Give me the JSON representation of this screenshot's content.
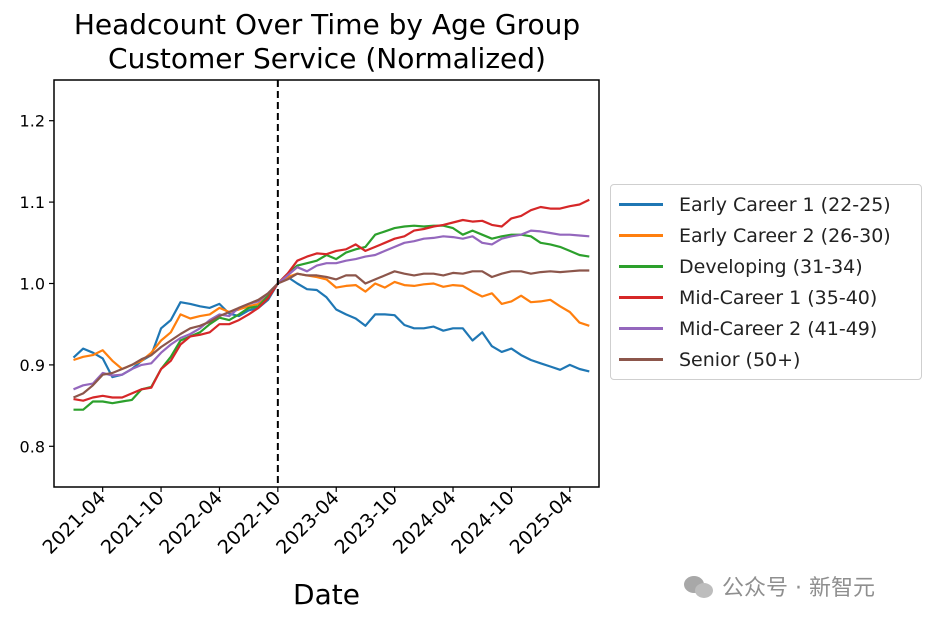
{
  "title_line1": "Headcount Over Time by Age Group",
  "title_line2": "Customer Service (Normalized)",
  "watermark": "公众号 · 新智元",
  "chart_data": {
    "type": "line",
    "title": "Headcount Over Time by Age Group\nCustomer Service (Normalized)",
    "xlabel": "Date",
    "ylabel": "",
    "x_tick_labels": [
      "2021-04",
      "2021-10",
      "2022-04",
      "2022-10",
      "2023-04",
      "2023-10",
      "2024-04",
      "2024-10",
      "2025-04"
    ],
    "y_ticks": [
      0.8,
      0.9,
      1.0,
      1.1,
      1.2
    ],
    "ylim": [
      0.75,
      1.25
    ],
    "xlim": [
      "2020-11-01",
      "2025-07-01"
    ],
    "grid": false,
    "legend_position": "outside-right",
    "vline": {
      "x": "2022-10-01",
      "style": "dashed",
      "color": "#000000"
    },
    "x": [
      "2021-01",
      "2021-02",
      "2021-03",
      "2021-04",
      "2021-05",
      "2021-06",
      "2021-07",
      "2021-08",
      "2021-09",
      "2021-10",
      "2021-11",
      "2021-12",
      "2022-01",
      "2022-02",
      "2022-03",
      "2022-04",
      "2022-05",
      "2022-06",
      "2022-07",
      "2022-08",
      "2022-09",
      "2022-10",
      "2022-11",
      "2022-12",
      "2023-01",
      "2023-02",
      "2023-03",
      "2023-04",
      "2023-05",
      "2023-06",
      "2023-07",
      "2023-08",
      "2023-09",
      "2023-10",
      "2023-11",
      "2023-12",
      "2024-01",
      "2024-02",
      "2024-03",
      "2024-04",
      "2024-05",
      "2024-06",
      "2024-07",
      "2024-08",
      "2024-09",
      "2024-10",
      "2024-11",
      "2024-12",
      "2025-01",
      "2025-02",
      "2025-03",
      "2025-04",
      "2025-05",
      "2025-06"
    ],
    "series": [
      {
        "name": "Early Career 1 (22-25)",
        "color": "#1f77b4",
        "values": [
          0.909,
          0.92,
          0.915,
          0.908,
          0.885,
          0.888,
          0.895,
          0.905,
          0.912,
          0.945,
          0.955,
          0.977,
          0.975,
          0.972,
          0.97,
          0.975,
          0.963,
          0.96,
          0.967,
          0.97,
          0.98,
          1.0,
          1.008,
          1.0,
          0.993,
          0.992,
          0.983,
          0.968,
          0.962,
          0.957,
          0.948,
          0.962,
          0.962,
          0.961,
          0.949,
          0.945,
          0.945,
          0.947,
          0.942,
          0.945,
          0.945,
          0.93,
          0.94,
          0.923,
          0.916,
          0.92,
          0.912,
          0.906,
          0.902,
          0.898,
          0.894,
          0.9,
          0.895,
          0.892
        ]
      },
      {
        "name": "Early Career 2 (26-30)",
        "color": "#ff7f0e",
        "values": [
          0.906,
          0.91,
          0.912,
          0.918,
          0.905,
          0.895,
          0.9,
          0.905,
          0.915,
          0.93,
          0.94,
          0.962,
          0.957,
          0.96,
          0.962,
          0.97,
          0.965,
          0.968,
          0.972,
          0.975,
          0.985,
          1.0,
          1.008,
          1.012,
          1.01,
          1.008,
          1.005,
          0.995,
          0.997,
          0.998,
          0.99,
          1.0,
          0.995,
          1.002,
          0.998,
          0.997,
          0.999,
          1.0,
          0.996,
          0.998,
          0.997,
          0.99,
          0.984,
          0.988,
          0.975,
          0.978,
          0.985,
          0.977,
          0.978,
          0.98,
          0.972,
          0.965,
          0.952,
          0.948
        ]
      },
      {
        "name": "Developing (31-34)",
        "color": "#2ca02c",
        "values": [
          0.845,
          0.845,
          0.855,
          0.855,
          0.853,
          0.855,
          0.857,
          0.87,
          0.873,
          0.895,
          0.91,
          0.93,
          0.935,
          0.94,
          0.95,
          0.958,
          0.955,
          0.962,
          0.97,
          0.972,
          0.985,
          1.0,
          1.012,
          1.022,
          1.025,
          1.028,
          1.035,
          1.03,
          1.038,
          1.042,
          1.045,
          1.06,
          1.064,
          1.068,
          1.07,
          1.071,
          1.07,
          1.071,
          1.071,
          1.068,
          1.06,
          1.065,
          1.06,
          1.055,
          1.058,
          1.06,
          1.06,
          1.058,
          1.05,
          1.048,
          1.045,
          1.04,
          1.035,
          1.033
        ]
      },
      {
        "name": "Mid-Career 1 (35-40)",
        "color": "#d62728",
        "values": [
          0.858,
          0.856,
          0.86,
          0.862,
          0.86,
          0.86,
          0.865,
          0.87,
          0.872,
          0.895,
          0.905,
          0.925,
          0.935,
          0.937,
          0.94,
          0.95,
          0.95,
          0.955,
          0.962,
          0.97,
          0.982,
          1.0,
          1.012,
          1.028,
          1.033,
          1.037,
          1.036,
          1.04,
          1.042,
          1.048,
          1.04,
          1.045,
          1.05,
          1.055,
          1.058,
          1.065,
          1.067,
          1.07,
          1.072,
          1.075,
          1.078,
          1.076,
          1.077,
          1.072,
          1.07,
          1.08,
          1.083,
          1.09,
          1.094,
          1.092,
          1.092,
          1.095,
          1.097,
          1.103
        ]
      },
      {
        "name": "Mid-Career 2 (41-49)",
        "color": "#9467bd",
        "values": [
          0.87,
          0.875,
          0.877,
          0.89,
          0.887,
          0.888,
          0.895,
          0.9,
          0.902,
          0.915,
          0.925,
          0.933,
          0.938,
          0.945,
          0.955,
          0.962,
          0.96,
          0.97,
          0.975,
          0.978,
          0.988,
          1.0,
          1.01,
          1.02,
          1.015,
          1.022,
          1.025,
          1.025,
          1.028,
          1.03,
          1.033,
          1.035,
          1.04,
          1.045,
          1.05,
          1.052,
          1.055,
          1.056,
          1.058,
          1.057,
          1.055,
          1.058,
          1.05,
          1.048,
          1.055,
          1.058,
          1.06,
          1.065,
          1.064,
          1.062,
          1.06,
          1.06,
          1.059,
          1.058
        ]
      },
      {
        "name": "Senior (50+)",
        "color": "#8c564b",
        "values": [
          0.86,
          0.865,
          0.875,
          0.888,
          0.89,
          0.895,
          0.9,
          0.907,
          0.912,
          0.922,
          0.93,
          0.938,
          0.945,
          0.948,
          0.953,
          0.96,
          0.965,
          0.97,
          0.975,
          0.98,
          0.988,
          1.0,
          1.005,
          1.012,
          1.01,
          1.01,
          1.008,
          1.005,
          1.01,
          1.01,
          1.0,
          1.005,
          1.01,
          1.015,
          1.012,
          1.01,
          1.012,
          1.012,
          1.01,
          1.013,
          1.012,
          1.015,
          1.015,
          1.008,
          1.012,
          1.015,
          1.015,
          1.012,
          1.014,
          1.015,
          1.014,
          1.015,
          1.016,
          1.016
        ]
      }
    ]
  }
}
